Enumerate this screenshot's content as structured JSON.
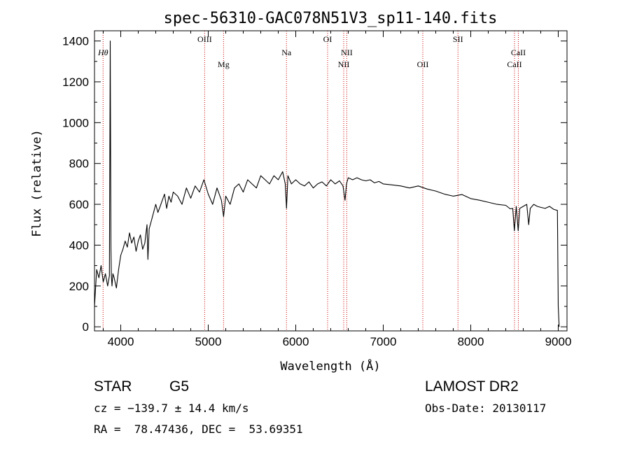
{
  "title": "spec-56310-GAC078N51V3_sp11-140.fits",
  "footer": {
    "object_type": "STAR",
    "subclass": "G5",
    "survey": "LAMOST DR2",
    "redshift": "cz = −139.7 ± 14.4 km/s",
    "obs_date": "Obs-Date: 20130117",
    "coords": "RA =  78.47436, DEC =  53.69351"
  },
  "chart_data": {
    "type": "line",
    "title": "spec-56310-GAC078N51V3_sp11-140.fits",
    "xlabel": "Wavelength (Å)",
    "ylabel": "Flux (relative)",
    "xlim": [
      3700,
      9100
    ],
    "ylim": [
      -20,
      1450
    ],
    "xticks": [
      4000,
      5000,
      6000,
      7000,
      8000,
      9000
    ],
    "yticks": [
      0,
      200,
      400,
      600,
      800,
      1000,
      1200,
      1400
    ],
    "grid": false,
    "line_color": "#000000",
    "marker_color": "#cc0000",
    "lines": [
      {
        "label": "Hθ",
        "x": 3798,
        "row": 1
      },
      {
        "label": "OIII",
        "x": 4959,
        "row": 0
      },
      {
        "label": "Mg",
        "x": 5175,
        "row": 2
      },
      {
        "label": "Na",
        "x": 5894,
        "row": 1
      },
      {
        "label": "OI",
        "x": 6364,
        "row": 0
      },
      {
        "label": "NII",
        "x": 6548,
        "row": 2
      },
      {
        "label": "NII",
        "x": 6583,
        "row": 1
      },
      {
        "label": "OII",
        "x": 7452,
        "row": 2
      },
      {
        "label": "SII",
        "x": 7854,
        "row": 0
      },
      {
        "label": "CaII",
        "x": 8500,
        "row": 2
      },
      {
        "label": "CaII",
        "x": 8544,
        "row": 1
      }
    ],
    "series": [
      {
        "x": [
          3700,
          3725,
          3750,
          3775,
          3800,
          3825,
          3850,
          3870,
          3880,
          3888,
          3893,
          3900,
          3910,
          3925,
          3950,
          3975,
          4000,
          4025,
          4050,
          4075,
          4100,
          4125,
          4150,
          4175,
          4200,
          4225,
          4250,
          4275,
          4300,
          4310,
          4325,
          4350,
          4375,
          4400,
          4425,
          4450,
          4475,
          4500,
          4525,
          4550,
          4575,
          4600,
          4650,
          4700,
          4750,
          4800,
          4850,
          4900,
          4950,
          5000,
          5050,
          5100,
          5150,
          5175,
          5200,
          5250,
          5300,
          5350,
          5400,
          5450,
          5500,
          5550,
          5600,
          5650,
          5700,
          5750,
          5800,
          5850,
          5880,
          5894,
          5910,
          5950,
          6000,
          6050,
          6100,
          6150,
          6200,
          6250,
          6300,
          6350,
          6400,
          6450,
          6500,
          6540,
          6563,
          6580,
          6600,
          6650,
          6700,
          6750,
          6800,
          6850,
          6900,
          6950,
          7000,
          7100,
          7200,
          7300,
          7400,
          7500,
          7600,
          7700,
          7800,
          7900,
          8000,
          8100,
          8200,
          8300,
          8400,
          8450,
          8480,
          8498,
          8520,
          8542,
          8560,
          8600,
          8640,
          8662,
          8680,
          8720,
          8760,
          8800,
          8850,
          8900,
          8950,
          8990,
          9000,
          9010
        ],
        "y": [
          100,
          280,
          240,
          300,
          220,
          260,
          200,
          250,
          1400,
          380,
          250,
          200,
          260,
          240,
          190,
          280,
          350,
          380,
          420,
          390,
          460,
          410,
          440,
          370,
          420,
          450,
          380,
          410,
          500,
          330,
          480,
          520,
          560,
          600,
          560,
          590,
          620,
          650,
          580,
          640,
          610,
          660,
          640,
          600,
          680,
          630,
          690,
          660,
          720,
          650,
          600,
          680,
          620,
          540,
          640,
          600,
          680,
          700,
          660,
          720,
          700,
          680,
          740,
          720,
          700,
          740,
          720,
          760,
          700,
          580,
          740,
          700,
          720,
          700,
          690,
          710,
          680,
          700,
          710,
          690,
          720,
          700,
          715,
          690,
          620,
          700,
          730,
          720,
          730,
          720,
          715,
          720,
          705,
          712,
          700,
          695,
          690,
          680,
          690,
          675,
          665,
          650,
          640,
          648,
          628,
          620,
          610,
          600,
          595,
          578,
          580,
          470,
          590,
          470,
          580,
          590,
          600,
          500,
          580,
          600,
          590,
          585,
          580,
          590,
          575,
          570,
          100,
          0
        ]
      }
    ]
  }
}
